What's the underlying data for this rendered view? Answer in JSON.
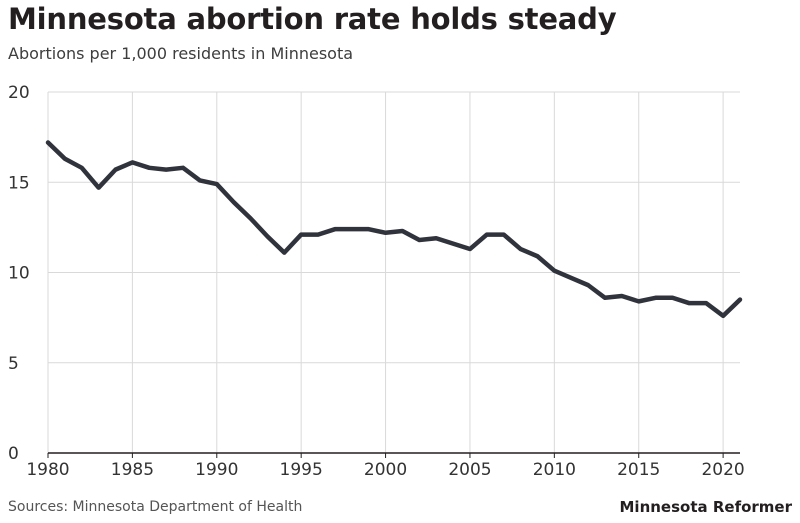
{
  "chart_data": {
    "type": "line",
    "title": "Minnesota abortion rate holds steady",
    "subtitle": "Abortions per 1,000 residents in Minnesota",
    "xlabel": "",
    "ylabel": "",
    "xlim": [
      1980,
      2021
    ],
    "ylim": [
      0,
      20
    ],
    "x_ticks": [
      1980,
      1985,
      1990,
      1995,
      2000,
      2005,
      2010,
      2015,
      2020
    ],
    "y_ticks": [
      0,
      5,
      10,
      15,
      20
    ],
    "grid": true,
    "legend": "none",
    "series": [
      {
        "name": "Abortions per 1,000 residents",
        "color": "#30333c",
        "x": [
          1980,
          1981,
          1982,
          1983,
          1984,
          1985,
          1986,
          1987,
          1988,
          1989,
          1990,
          1991,
          1992,
          1993,
          1994,
          1995,
          1996,
          1997,
          1998,
          1999,
          2000,
          2001,
          2002,
          2003,
          2004,
          2005,
          2006,
          2007,
          2008,
          2009,
          2010,
          2011,
          2012,
          2013,
          2014,
          2015,
          2016,
          2017,
          2018,
          2019,
          2020,
          2021
        ],
        "values": [
          17.2,
          16.3,
          15.8,
          14.7,
          15.7,
          16.1,
          15.8,
          15.7,
          15.8,
          15.1,
          14.9,
          13.9,
          13.0,
          12.0,
          11.1,
          12.1,
          12.1,
          12.4,
          12.4,
          12.4,
          12.2,
          12.3,
          11.8,
          11.9,
          11.6,
          11.3,
          12.1,
          12.1,
          11.3,
          10.9,
          10.1,
          9.7,
          9.3,
          8.6,
          8.7,
          8.4,
          8.6,
          8.6,
          8.3,
          8.3,
          7.6,
          8.5
        ]
      }
    ]
  },
  "footer": {
    "source": "Sources: Minnesota Department of Health",
    "brand": "Minnesota Reformer"
  },
  "colors": {
    "line": "#30333c",
    "grid": "#d9d9d9",
    "axis": "#231f20"
  }
}
